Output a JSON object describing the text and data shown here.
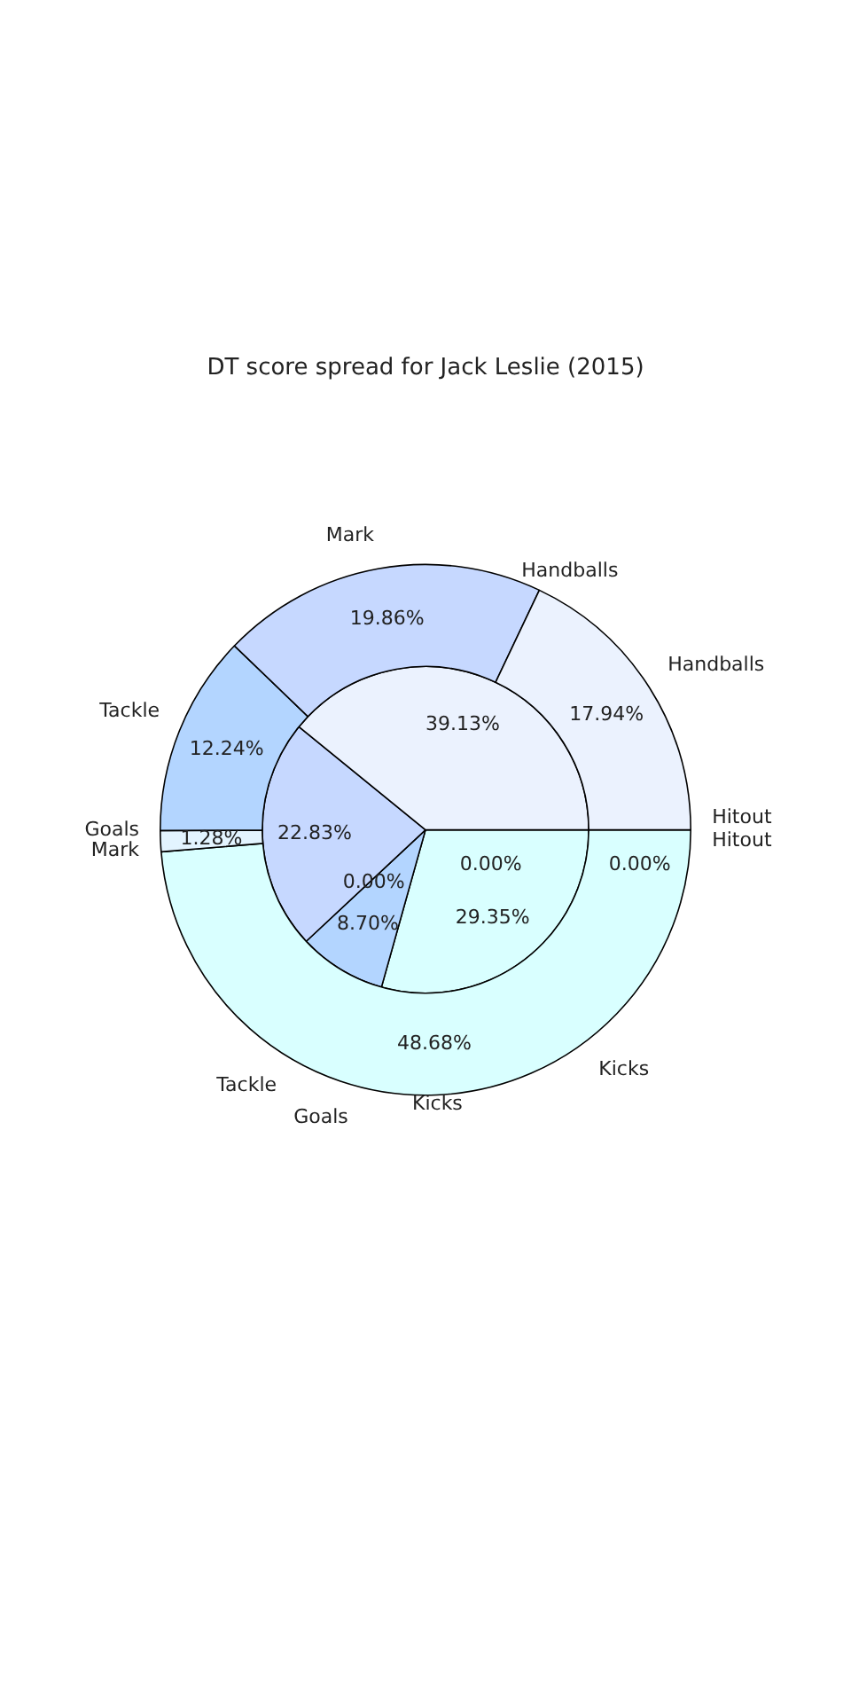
{
  "chart_data": {
    "type": "pie",
    "title": "DT score spread for Jack Leslie (2015)",
    "categories": [
      "Handballs",
      "Mark",
      "Tackle",
      "Goals",
      "Kicks",
      "Hitout"
    ],
    "series": [
      {
        "values": [
          17.94,
          19.86,
          12.24,
          1.28,
          48.68,
          0.0
        ],
        "colors": [
          "#ebf2fe",
          "#c6d8ff",
          "#b3d5ff",
          "#e3f4ff",
          "#d9ffff",
          "#f4f8ff"
        ],
        "value_labels": [
          "17.94%",
          "19.86%",
          "12.24%",
          "1.28%",
          "48.68%",
          "0.00%"
        ]
      },
      {
        "values": [
          39.13,
          22.83,
          8.7,
          0.0,
          29.35,
          0.0
        ],
        "colors": [
          "#ebf2fe",
          "#c6d8ff",
          "#b3d5ff",
          "#e3f4ff",
          "#d9ffff",
          "#f4f8ff"
        ],
        "value_labels": [
          "39.13%",
          "22.83%",
          "8.70%",
          "0.00%",
          "29.35%",
          "0.00%"
        ]
      }
    ],
    "legend": false
  }
}
